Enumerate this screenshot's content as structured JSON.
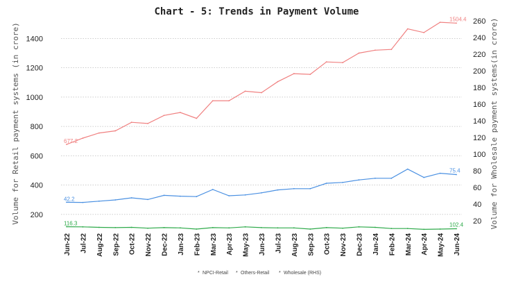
{
  "chart_data": {
    "type": "line",
    "title": "Chart - 5: Trends in Payment Volume",
    "ylabel": "Volume for Retail payment systems (in crore)",
    "y2label": "Volume for Wholesale payment systems(in crore)",
    "xlabel": "",
    "ylim": [
      100,
      1520
    ],
    "y2lim": [
      10,
      260
    ],
    "yticks": [
      200,
      400,
      600,
      800,
      1000,
      1200,
      1400
    ],
    "y2ticks": [
      20,
      40,
      60,
      80,
      100,
      120,
      140,
      160,
      180,
      200,
      220,
      240,
      260
    ],
    "grid": true,
    "legend_position": "bottom",
    "categories": [
      "Jun-22",
      "Jul-22",
      "Aug-22",
      "Sep-22",
      "Oct-22",
      "Nov-22",
      "Dec-22",
      "Jan-23",
      "Feb-23",
      "Mar-23",
      "Apr-23",
      "May-23",
      "Jun-23",
      "Jul-23",
      "Aug-23",
      "Sep-23",
      "Oct-23",
      "Nov-23",
      "Dec-23",
      "Jan-24",
      "Feb-24",
      "Mar-24",
      "Apr-24",
      "May-24",
      "Jun-24"
    ],
    "series": [
      {
        "name": "NPCI-Retail",
        "axis": "left",
        "color": "#f08080",
        "values": [
          677.2,
          720,
          755,
          770,
          828,
          820,
          875,
          895,
          855,
          975,
          975,
          1040,
          1030,
          1105,
          1160,
          1155,
          1240,
          1235,
          1300,
          1320,
          1325,
          1465,
          1440,
          1510,
          1504.4
        ],
        "first_label": "677.2",
        "last_label": "1504.4"
      },
      {
        "name": "Others-Retail",
        "axis": "left",
        "color": "#2eaa4a",
        "values": [
          116.3,
          115,
          112,
          110,
          112,
          106,
          110,
          108,
          100,
          110,
          108,
          115,
          110,
          108,
          108,
          100,
          110,
          106,
          115,
          112,
          104,
          104,
          98,
          100,
          102.4
        ],
        "first_label": "116.3",
        "last_label": "102.4"
      },
      {
        "name": "Wholesale (RHS)",
        "axis": "right",
        "color": "#4a90e2",
        "values": [
          42.2,
          42,
          43.5,
          45,
          47.5,
          45.5,
          50.5,
          49.5,
          49,
          57.5,
          50,
          51,
          53.5,
          57,
          58.5,
          58.5,
          65,
          66,
          69,
          71,
          71,
          82,
          72,
          77,
          75.4
        ],
        "first_label": "42.2",
        "last_label": "75.4"
      }
    ]
  }
}
